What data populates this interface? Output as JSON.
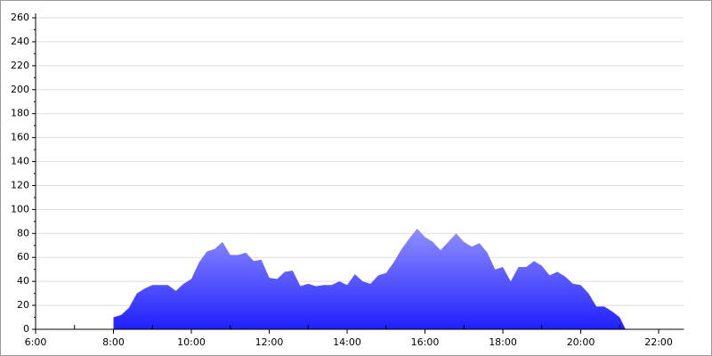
{
  "chart_data": {
    "type": "area",
    "x": [
      8.0,
      8.2,
      8.4,
      8.6,
      8.8,
      9.0,
      9.2,
      9.4,
      9.6,
      9.8,
      10.0,
      10.2,
      10.4,
      10.6,
      10.8,
      11.0,
      11.2,
      11.4,
      11.6,
      11.8,
      12.0,
      12.2,
      12.4,
      12.6,
      12.8,
      13.0,
      13.2,
      13.4,
      13.6,
      13.8,
      14.0,
      14.2,
      14.4,
      14.6,
      14.8,
      15.0,
      15.2,
      15.4,
      15.6,
      15.8,
      16.0,
      16.2,
      16.4,
      16.6,
      16.8,
      17.0,
      17.2,
      17.4,
      17.6,
      17.8,
      18.0,
      18.2,
      18.4,
      18.6,
      18.8,
      19.0,
      19.2,
      19.4,
      19.6,
      19.8,
      20.0,
      20.2,
      20.4,
      20.6,
      20.8,
      21.0,
      21.15
    ],
    "values": [
      10,
      12,
      18,
      30,
      34,
      37,
      37,
      37,
      32,
      38,
      42,
      56,
      65,
      67,
      73,
      62,
      62,
      64,
      57,
      58,
      43,
      42,
      48,
      49,
      36,
      38,
      36,
      37,
      37,
      40,
      37,
      46,
      40,
      38,
      45,
      47,
      56,
      67,
      76,
      84,
      77,
      73,
      66,
      73,
      80,
      73,
      69,
      72,
      64,
      50,
      52,
      40,
      52,
      52,
      57,
      53,
      45,
      48,
      44,
      38,
      37,
      30,
      19,
      19,
      15,
      10,
      0
    ],
    "colors": [
      "#9090ff",
      "#2020ff"
    ],
    "xlim": [
      6,
      22.65
    ],
    "xticks": [
      {
        "value": 6,
        "label": "6:00"
      },
      {
        "value": 8,
        "label": "8:00"
      },
      {
        "value": 10,
        "label": "10:00"
      },
      {
        "value": 12,
        "label": "12:00"
      },
      {
        "value": 14,
        "label": "14:00"
      },
      {
        "value": 16,
        "label": "16:00"
      },
      {
        "value": 18,
        "label": "18:00"
      },
      {
        "value": 20,
        "label": "20:00"
      },
      {
        "value": 22,
        "label": "22:00"
      }
    ],
    "ylim": [
      0,
      260
    ],
    "yticks": [
      0,
      20,
      40,
      60,
      80,
      100,
      120,
      140,
      160,
      180,
      200,
      220,
      240,
      260
    ],
    "grid": true
  }
}
